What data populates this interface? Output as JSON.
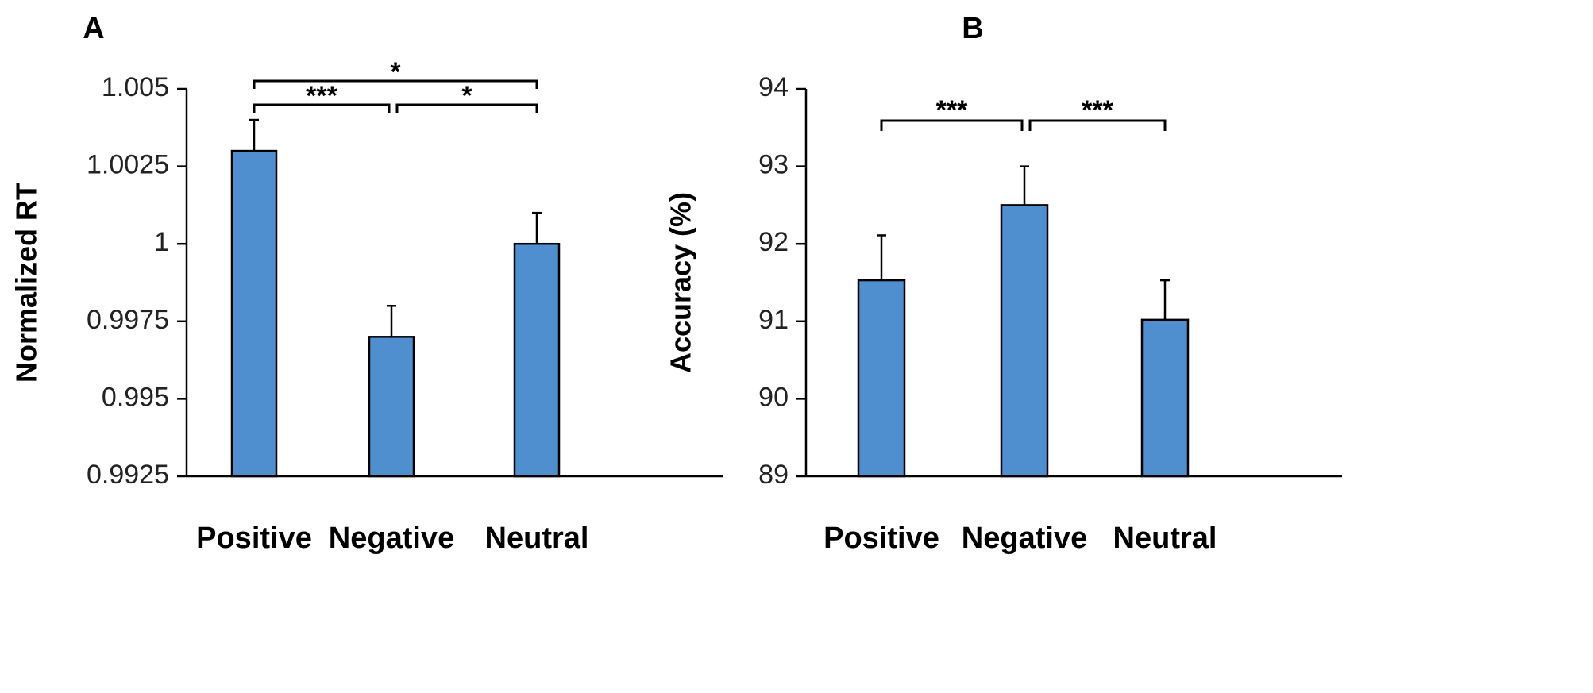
{
  "chart_data": [
    {
      "type": "bar",
      "panel_label": "A",
      "categories": [
        "Positive",
        "Negative",
        "Neutral"
      ],
      "values": [
        1.003,
        0.997,
        1.0
      ],
      "errors": [
        0.001,
        0.001,
        0.001
      ],
      "ylabel": "Normalized RT",
      "ylim": [
        0.9925,
        1.005
      ],
      "yticks": [
        0.9925,
        0.995,
        0.9975,
        1.0,
        1.0025,
        1.005
      ],
      "ytick_labels": [
        "0.9925",
        "0.995",
        "0.9975",
        "1",
        "1.0025",
        "1.005"
      ],
      "bar_color": "#4F8FD0",
      "significance": [
        {
          "from": 0,
          "to": 1,
          "label": "***"
        },
        {
          "from": 1,
          "to": 2,
          "label": "*"
        },
        {
          "from": 0,
          "to": 2,
          "label": "*"
        }
      ]
    },
    {
      "type": "bar",
      "panel_label": "B",
      "categories": [
        "Positive",
        "Negative",
        "Neutral"
      ],
      "values": [
        91.53,
        92.5,
        91.02
      ],
      "errors": [
        0.58,
        0.5,
        0.51
      ],
      "ylabel": "Accuracy (%)",
      "ylim": [
        89,
        94
      ],
      "yticks": [
        89,
        90,
        91,
        92,
        93,
        94
      ],
      "ytick_labels": [
        "89",
        "90",
        "91",
        "92",
        "93",
        "94"
      ],
      "bar_color": "#4F8FD0",
      "significance": [
        {
          "from": 0,
          "to": 1,
          "label": "***"
        },
        {
          "from": 1,
          "to": 2,
          "label": "***"
        }
      ]
    }
  ]
}
